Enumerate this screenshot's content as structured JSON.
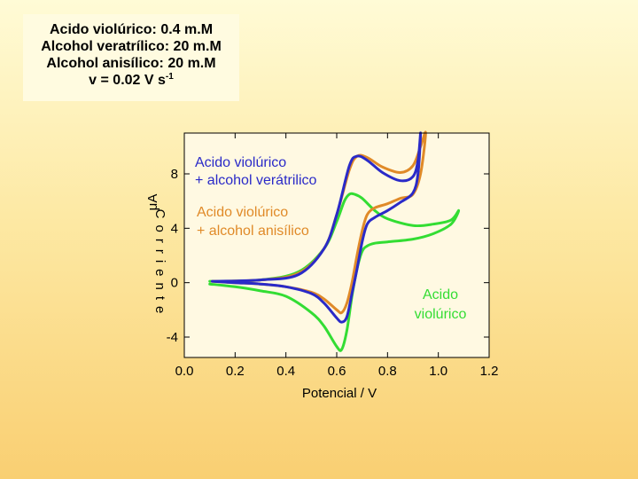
{
  "info_box": {
    "line1": "Acido violúrico: 0.4 m.M",
    "line2": "Alcohol veratrílico: 20 m.M",
    "line3": "Alcohol anisílico: 20 m.M",
    "line4_prefix": "v = 0.02 V s",
    "line4_sup": "-1"
  },
  "colors": {
    "violurico": "#33dd33",
    "anisilico": "#e08a28",
    "veratrilico": "#2a2ac8",
    "plot_bg": "#fff9e2"
  },
  "chart_data": {
    "type": "line",
    "title": "",
    "xlabel": "Potencial / V",
    "ylabel_unit": "μA",
    "ylabel_rot": "Corriente",
    "xlim": [
      0.0,
      1.2
    ],
    "ylim": [
      -5.5,
      11.0
    ],
    "xticks": [
      "0.0",
      "0.2",
      "0.4",
      "0.6",
      "0.8",
      "1.0",
      "1.2"
    ],
    "xtick_values": [
      0.0,
      0.2,
      0.4,
      0.6,
      0.8,
      1.0,
      1.2
    ],
    "yticks": [
      "8",
      "4",
      "0",
      "-4"
    ],
    "ytick_values": [
      8,
      4,
      0,
      -4
    ],
    "grid": false,
    "series": [
      {
        "key": "violurico",
        "label_lines": [
          "Acido",
          "violúrico"
        ],
        "color_key": "violurico",
        "x": [
          0.1,
          0.3,
          0.45,
          0.55,
          0.6,
          0.63,
          0.65,
          0.67,
          0.7,
          0.75,
          0.8,
          0.9,
          0.98,
          1.05,
          1.08,
          1.05,
          0.98,
          0.9,
          0.8,
          0.75,
          0.72,
          0.7,
          0.68,
          0.66,
          0.64,
          0.62,
          0.6,
          0.55,
          0.5,
          0.4,
          0.3,
          0.2,
          0.1
        ],
        "y": [
          0.1,
          0.2,
          0.8,
          2.5,
          4.5,
          6.0,
          6.5,
          6.5,
          6.2,
          5.3,
          4.7,
          4.2,
          4.3,
          4.6,
          5.3,
          4.3,
          3.6,
          3.2,
          3.0,
          2.9,
          2.7,
          2.3,
          1.0,
          -1.0,
          -3.5,
          -4.9,
          -4.7,
          -3.2,
          -2.2,
          -1.0,
          -0.6,
          -0.3,
          -0.1
        ]
      },
      {
        "key": "anisilico",
        "label_lines": [
          "Acido violúrico",
          "+ alcohol anisílico"
        ],
        "color_key": "anisilico",
        "x": [
          0.11,
          0.3,
          0.45,
          0.55,
          0.6,
          0.65,
          0.68,
          0.72,
          0.78,
          0.85,
          0.9,
          0.93,
          0.95,
          0.93,
          0.9,
          0.85,
          0.8,
          0.75,
          0.72,
          0.7,
          0.68,
          0.66,
          0.64,
          0.62,
          0.6,
          0.55,
          0.5,
          0.4,
          0.3,
          0.2,
          0.11
        ],
        "y": [
          0.1,
          0.2,
          0.7,
          2.5,
          5.0,
          8.3,
          9.3,
          9.2,
          8.5,
          8.1,
          8.6,
          10.0,
          11.0,
          8.0,
          6.5,
          6.2,
          5.8,
          5.5,
          5.0,
          3.8,
          2.0,
          0.0,
          -1.5,
          -2.2,
          -2.0,
          -1.2,
          -0.7,
          -0.3,
          -0.1,
          0.0,
          0.1
        ]
      },
      {
        "key": "veratrilico",
        "label_lines": [
          "Acido violúrico",
          "+ alcohol verátrilico"
        ],
        "color_key": "veratrilico",
        "x": [
          0.11,
          0.3,
          0.45,
          0.55,
          0.6,
          0.65,
          0.68,
          0.72,
          0.78,
          0.85,
          0.9,
          0.92,
          0.93,
          0.92,
          0.9,
          0.85,
          0.8,
          0.75,
          0.72,
          0.7,
          0.68,
          0.66,
          0.64,
          0.62,
          0.6,
          0.55,
          0.5,
          0.4,
          0.3,
          0.2,
          0.11
        ],
        "y": [
          0.1,
          0.2,
          0.6,
          2.5,
          5.0,
          8.6,
          9.3,
          9.0,
          8.1,
          7.5,
          7.8,
          9.0,
          11.0,
          8.0,
          6.6,
          5.9,
          5.3,
          4.8,
          4.3,
          3.0,
          1.0,
          -0.8,
          -2.5,
          -2.9,
          -2.6,
          -1.5,
          -0.8,
          -0.3,
          -0.1,
          0.0,
          0.1
        ]
      }
    ]
  }
}
